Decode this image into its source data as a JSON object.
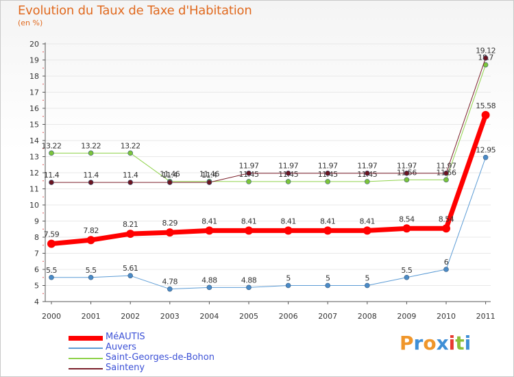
{
  "page": {
    "title": "Evolution du Taux de Taxe d'Habitation",
    "subtitle": "(en %)",
    "logo": {
      "text": "Proxiti",
      "letters": [
        {
          "ch": "P",
          "color": "#f0962a"
        },
        {
          "ch": "r",
          "color": "#3f8fd6"
        },
        {
          "ch": "o",
          "color": "#f0962a"
        },
        {
          "ch": "x",
          "color": "#3f8fd6"
        },
        {
          "ch": "i",
          "color": "#e83a2f"
        },
        {
          "ch": "t",
          "color": "#8cbf3a"
        },
        {
          "ch": "i",
          "color": "#3f8fd6"
        }
      ]
    }
  },
  "chart_data": {
    "type": "line",
    "title": "Evolution du Taux de Taxe d'Habitation",
    "ylabel": "(en %)",
    "xlabel": "",
    "ylim": [
      4,
      20
    ],
    "yticks": [
      "4",
      "5",
      "6",
      "7",
      "8",
      "9",
      "10",
      "11",
      "12",
      "13",
      "14",
      "15",
      "16",
      "17",
      "18",
      "19",
      "20"
    ],
    "categories": [
      "2000",
      "2001",
      "2002",
      "2003",
      "2004",
      "2005",
      "2006",
      "2007",
      "2008",
      "2009",
      "2010",
      "2011"
    ],
    "series": [
      {
        "name": "Saint-Georges-de-Bohon",
        "color": "#8fd24a",
        "markerColor": "#7cc43a",
        "width": 1,
        "values": [
          13.22,
          13.22,
          13.22,
          11.46,
          11.46,
          11.45,
          11.45,
          11.45,
          11.45,
          11.56,
          11.56,
          18.7
        ],
        "labels": [
          "13.22",
          "13.22",
          "13.22",
          "11.46",
          "11.46",
          "11.45",
          "11.45",
          "11.45",
          "11.45",
          "11.56",
          "11.56",
          "18.7"
        ]
      },
      {
        "name": "Sainteny",
        "color": "#7a1f2a",
        "markerColor": "#6b1420",
        "width": 1,
        "values": [
          11.4,
          11.4,
          11.4,
          11.4,
          11.4,
          11.97,
          11.97,
          11.97,
          11.97,
          11.97,
          11.97,
          19.12
        ],
        "labels": [
          "11.4",
          "11.4",
          "11.4",
          "11.4",
          "11.4",
          "11.97",
          "11.97",
          "11.97",
          "11.97",
          "11.97",
          "11.97",
          "19.12"
        ]
      },
      {
        "name": "Auvers",
        "color": "#5b9bd5",
        "markerColor": "#4a8ac6",
        "width": 1,
        "values": [
          5.5,
          5.5,
          5.61,
          4.78,
          4.88,
          4.88,
          5,
          5,
          5,
          5.5,
          6,
          12.95
        ],
        "labels": [
          "5.5",
          "5.5",
          "5.61",
          "4.78",
          "4.88",
          "4.88",
          "5",
          "5",
          "5",
          "5.5",
          "6",
          "12.95"
        ]
      },
      {
        "name": "MéAUTIS",
        "color": "#ff0000",
        "markerColor": "#ff0000",
        "width": 7,
        "values": [
          7.59,
          7.82,
          8.21,
          8.29,
          8.41,
          8.41,
          8.41,
          8.41,
          8.41,
          8.54,
          8.54,
          15.58
        ],
        "labels": [
          "7.59",
          "7.82",
          "8.21",
          "8.29",
          "8.41",
          "8.41",
          "8.41",
          "8.41",
          "8.41",
          "8.54",
          "8.54",
          "15.58"
        ]
      }
    ],
    "legend": [
      {
        "name": "MéAUTIS",
        "color": "#ff0000"
      },
      {
        "name": "Auvers",
        "color": "#5b9bd5"
      },
      {
        "name": "Saint-Georges-de-Bohon",
        "color": "#8fd24a"
      },
      {
        "name": "Sainteny",
        "color": "#7a1f2a"
      }
    ],
    "legend_position": "bottom-left"
  }
}
